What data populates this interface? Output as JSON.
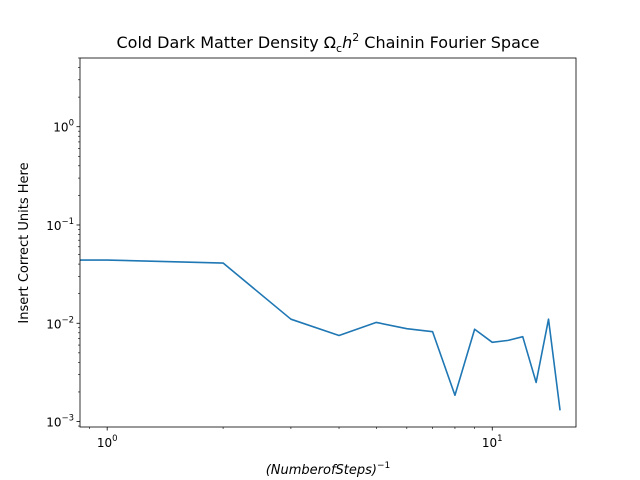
{
  "chart_data": {
    "type": "line",
    "title": {
      "prefix": "Cold Dark Matter Density ",
      "symbol": "Ω",
      "symbol_sub": "c",
      "var": "h",
      "var_sup": "2",
      "suffix": " Chainin Fourier Space"
    },
    "xlabel": {
      "base": "(NumberofSteps)",
      "sup": "−1"
    },
    "ylabel": "Insert Correct Units Here",
    "xscale": "log",
    "yscale": "log",
    "xlim": [
      0.85,
      16.5
    ],
    "ylim": [
      0.00088,
      5.0
    ],
    "grid": false,
    "series": [
      {
        "color": "#1f77b4",
        "x": [
          0.85,
          1,
          2,
          3,
          4,
          5,
          6,
          7,
          8,
          9,
          10,
          11,
          12,
          13,
          14,
          15
        ],
        "y": [
          0.044,
          0.044,
          0.041,
          0.011,
          0.0075,
          0.0102,
          0.0088,
          0.0082,
          0.00185,
          0.0087,
          0.0064,
          0.0067,
          0.0073,
          0.0025,
          0.011,
          0.0013
        ]
      }
    ],
    "x_ticks": [
      {
        "value": 1,
        "base": "10",
        "exp": "0"
      },
      {
        "value": 10,
        "base": "10",
        "exp": "1"
      }
    ],
    "y_ticks": [
      {
        "value": 0.001,
        "base": "10",
        "exp": "−3"
      },
      {
        "value": 0.01,
        "base": "10",
        "exp": "−2"
      },
      {
        "value": 0.1,
        "base": "10",
        "exp": "−1"
      },
      {
        "value": 1,
        "base": "10",
        "exp": "0"
      }
    ]
  }
}
